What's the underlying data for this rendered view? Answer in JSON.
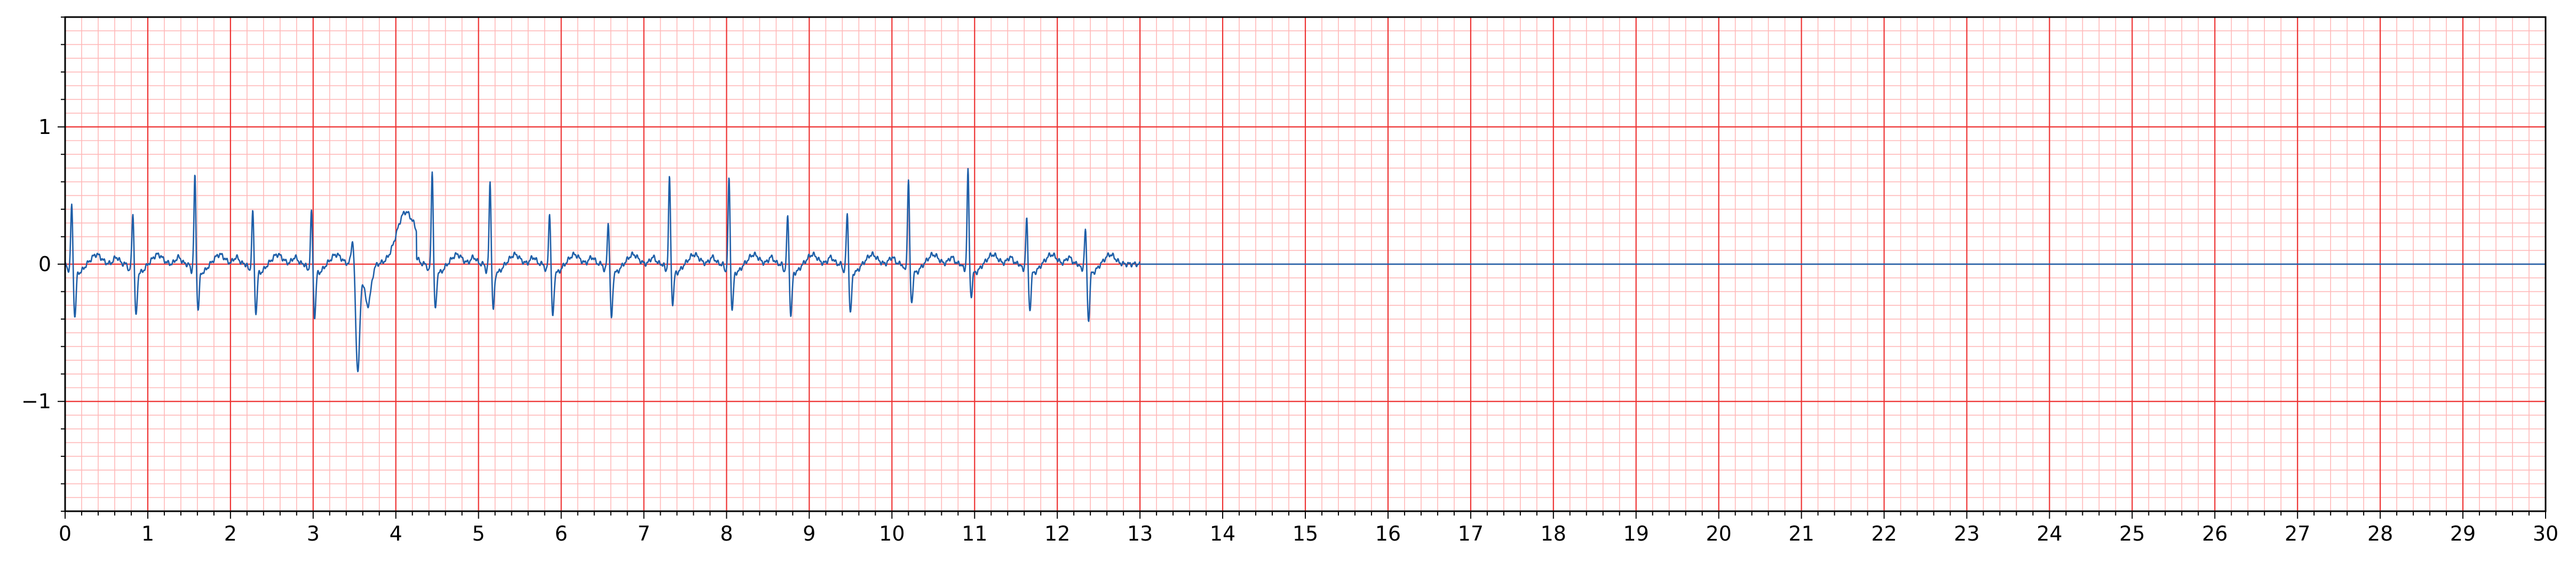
{
  "chart_data": {
    "type": "line",
    "title": "",
    "xlabel": "",
    "ylabel": "",
    "xlim": [
      0,
      30
    ],
    "ylim": [
      -1.8,
      1.8
    ],
    "grid": {
      "major": true,
      "minor": true,
      "major_color": "#ee3333",
      "minor_color": "#ffb8b8"
    },
    "x_ticks": [
      "0",
      "1",
      "2",
      "3",
      "4",
      "5",
      "6",
      "7",
      "8",
      "9",
      "10",
      "11",
      "12",
      "13",
      "14",
      "15",
      "16",
      "17",
      "18",
      "19",
      "20",
      "21",
      "22",
      "23",
      "24",
      "25",
      "26",
      "27",
      "28",
      "29",
      "30"
    ],
    "y_ticks": [
      {
        "value": 1,
        "label": "1"
      },
      {
        "value": 0,
        "label": "0"
      },
      {
        "value": -1,
        "label": "−1"
      }
    ],
    "signal_end_x": 13,
    "series": [
      {
        "color": "#1f5fa8",
        "beats": [
          {
            "t": 0.08,
            "r": 0.45,
            "s": -0.35
          },
          {
            "t": 0.82,
            "r": 0.4,
            "s": -0.35
          },
          {
            "t": 1.57,
            "r": 0.66,
            "s": -0.3
          },
          {
            "t": 2.27,
            "r": 0.41,
            "s": -0.32
          },
          {
            "t": 2.98,
            "r": 0.41,
            "s": -0.35
          },
          {
            "t": 3.5,
            "r": 0.2,
            "s": -0.77,
            "ectopic": true
          },
          {
            "t": 4.44,
            "r": 0.71,
            "s": -0.3
          },
          {
            "t": 5.14,
            "r": 0.62,
            "s": -0.3
          },
          {
            "t": 5.86,
            "r": 0.4,
            "s": -0.35
          },
          {
            "t": 6.57,
            "r": 0.33,
            "s": -0.36
          },
          {
            "t": 7.31,
            "r": 0.65,
            "s": -0.25
          },
          {
            "t": 8.03,
            "r": 0.65,
            "s": -0.3
          },
          {
            "t": 8.74,
            "r": 0.37,
            "s": -0.34
          },
          {
            "t": 9.46,
            "r": 0.39,
            "s": -0.33
          },
          {
            "t": 10.2,
            "r": 0.64,
            "s": -0.25
          },
          {
            "t": 10.92,
            "r": 0.7,
            "s": -0.2
          },
          {
            "t": 11.63,
            "r": 0.35,
            "s": -0.3
          },
          {
            "t": 12.34,
            "r": 0.27,
            "s": -0.38
          }
        ]
      }
    ]
  }
}
